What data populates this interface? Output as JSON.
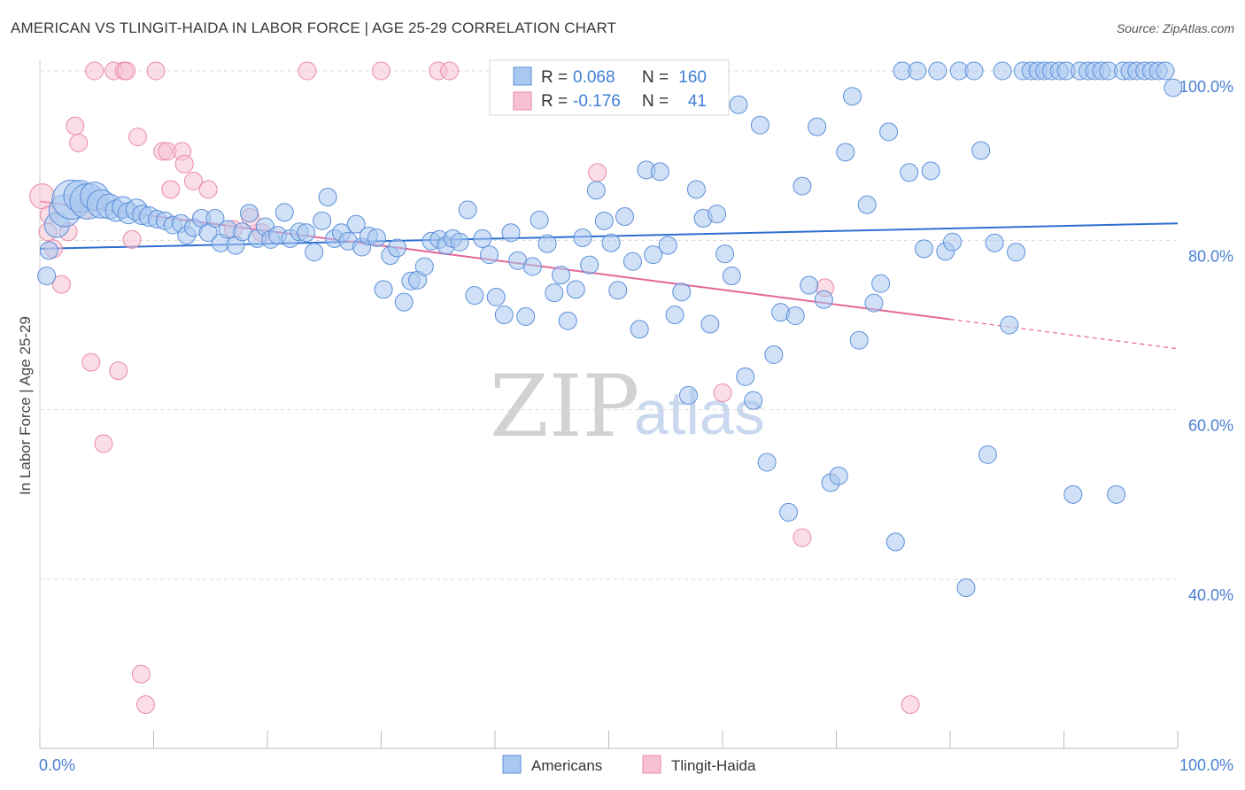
{
  "title": "AMERICAN VS TLINGIT-HAIDA IN LABOR FORCE | AGE 25-29 CORRELATION CHART",
  "source": "Source: ZipAtlas.com",
  "watermark": {
    "zip": "ZIP",
    "atlas": "atlas"
  },
  "colors": {
    "americans_fill": "#a9c8f0",
    "americans_stroke": "#5b8fd9",
    "americans_line": "#2f6fd1",
    "tlingit_fill": "#f7c1d1",
    "tlingit_stroke": "#e88aa8",
    "tlingit_line": "#e4679a",
    "grid": "#d8d8d8",
    "tick_label": "#4a7fd4"
  },
  "stats": {
    "r_label": "R =",
    "n_label": "N =",
    "americans": {
      "r": "0.068",
      "n": "160"
    },
    "tlingit": {
      "r": "-0.176",
      "n": "41"
    }
  },
  "chart_data": {
    "type": "scatter",
    "xlabel": "",
    "ylabel": "In Labor Force | Age 25-29",
    "xlim": [
      0,
      100
    ],
    "ylim": [
      20,
      102
    ],
    "x_tick_labels": [
      {
        "v": 0,
        "t": "0.0%"
      },
      {
        "v": 100,
        "t": "100.0%"
      }
    ],
    "y_tick_labels": [
      {
        "v": 100,
        "t": "100.0%"
      },
      {
        "v": 80,
        "t": "80.0%"
      },
      {
        "v": 60,
        "t": "60.0%"
      },
      {
        "v": 40,
        "t": "40.0%"
      }
    ],
    "y_gridlines": [
      100,
      80,
      60,
      40
    ],
    "legend_placement": "bottom-center",
    "series": [
      {
        "name": "Americans",
        "trend": {
          "x0": 0,
          "y0": 79.0,
          "x1": 100,
          "y1": 82.0,
          "solid_to": 100
        },
        "points": [
          [
            0.6,
            75.8,
            10
          ],
          [
            0.8,
            78.8,
            10
          ],
          [
            1.5,
            81.8,
            14
          ],
          [
            2.2,
            83.5,
            18
          ],
          [
            2.8,
            84.8,
            22
          ],
          [
            3.5,
            85.2,
            18
          ],
          [
            4.2,
            84.6,
            20
          ],
          [
            4.8,
            85.2,
            16
          ],
          [
            5.4,
            84.3,
            16
          ],
          [
            6.1,
            84.0,
            14
          ],
          [
            6.7,
            83.5,
            12
          ],
          [
            7.3,
            83.9,
            12
          ],
          [
            7.8,
            83.2,
            12
          ],
          [
            8.5,
            83.6,
            12
          ],
          [
            9.0,
            83.0,
            11
          ],
          [
            9.6,
            82.8,
            11
          ],
          [
            10.3,
            82.5,
            10
          ],
          [
            11.0,
            82.3,
            10
          ],
          [
            11.7,
            81.8,
            10
          ],
          [
            12.4,
            82.0,
            10
          ],
          [
            12.9,
            80.6,
            10
          ],
          [
            13.5,
            81.5,
            10
          ],
          [
            14.2,
            82.6,
            10
          ],
          [
            14.8,
            80.9,
            10
          ],
          [
            15.4,
            82.6,
            10
          ],
          [
            15.9,
            79.7,
            10
          ],
          [
            16.5,
            81.3,
            10
          ],
          [
            17.2,
            79.4,
            10
          ],
          [
            17.8,
            81.0,
            10
          ],
          [
            18.4,
            83.2,
            10
          ],
          [
            19.1,
            80.2,
            10
          ],
          [
            19.8,
            81.6,
            10
          ],
          [
            20.3,
            80.1,
            10
          ],
          [
            20.9,
            80.6,
            10
          ],
          [
            21.5,
            83.3,
            10
          ],
          [
            22.0,
            80.2,
            10
          ],
          [
            22.8,
            81.0,
            10
          ],
          [
            23.4,
            80.9,
            10
          ],
          [
            24.1,
            78.6,
            10
          ],
          [
            24.8,
            82.3,
            10
          ],
          [
            25.3,
            85.1,
            10
          ],
          [
            25.9,
            80.2,
            10
          ],
          [
            26.5,
            80.9,
            10
          ],
          [
            27.1,
            79.9,
            10
          ],
          [
            27.8,
            81.9,
            10
          ],
          [
            28.3,
            79.2,
            10
          ],
          [
            28.9,
            80.5,
            10
          ],
          [
            29.6,
            80.3,
            10
          ],
          [
            30.2,
            74.2,
            10
          ],
          [
            30.8,
            78.2,
            10
          ],
          [
            31.4,
            79.1,
            10
          ],
          [
            32.0,
            72.7,
            10
          ],
          [
            32.6,
            75.2,
            10
          ],
          [
            33.2,
            75.3,
            10
          ],
          [
            33.8,
            76.9,
            10
          ],
          [
            34.4,
            79.9,
            10
          ],
          [
            35.1,
            80.1,
            10
          ],
          [
            35.7,
            79.4,
            10
          ],
          [
            36.3,
            80.2,
            10
          ],
          [
            36.9,
            79.8,
            10
          ],
          [
            37.6,
            83.6,
            10
          ],
          [
            38.2,
            73.5,
            10
          ],
          [
            38.9,
            80.2,
            10
          ],
          [
            39.5,
            78.3,
            10
          ],
          [
            40.1,
            73.3,
            10
          ],
          [
            40.8,
            71.2,
            10
          ],
          [
            41.4,
            80.9,
            10
          ],
          [
            42.0,
            77.6,
            10
          ],
          [
            42.7,
            71.0,
            10
          ],
          [
            43.3,
            76.9,
            10
          ],
          [
            43.9,
            82.4,
            10
          ],
          [
            44.6,
            79.6,
            10
          ],
          [
            45.2,
            73.8,
            10
          ],
          [
            45.8,
            75.9,
            10
          ],
          [
            46.4,
            70.5,
            10
          ],
          [
            47.1,
            74.2,
            10
          ],
          [
            47.7,
            80.3,
            10
          ],
          [
            48.3,
            77.1,
            10
          ],
          [
            48.9,
            85.9,
            10
          ],
          [
            49.6,
            82.3,
            10
          ],
          [
            50.2,
            79.7,
            10
          ],
          [
            50.8,
            74.1,
            10
          ],
          [
            51.4,
            82.8,
            10
          ],
          [
            52.1,
            77.5,
            10
          ],
          [
            52.7,
            69.5,
            10
          ],
          [
            53.3,
            88.3,
            10
          ],
          [
            53.9,
            78.3,
            10
          ],
          [
            54.5,
            88.1,
            10
          ],
          [
            55.2,
            79.4,
            10
          ],
          [
            55.8,
            71.2,
            10
          ],
          [
            56.4,
            73.9,
            10
          ],
          [
            57.0,
            61.7,
            10
          ],
          [
            57.7,
            86.0,
            10
          ],
          [
            58.3,
            82.6,
            10
          ],
          [
            58.9,
            70.1,
            10
          ],
          [
            59.5,
            83.1,
            10
          ],
          [
            60.2,
            78.4,
            10
          ],
          [
            60.8,
            75.8,
            10
          ],
          [
            61.4,
            96.0,
            10
          ],
          [
            62.0,
            63.9,
            10
          ],
          [
            62.7,
            61.1,
            10
          ],
          [
            63.3,
            93.6,
            10
          ],
          [
            63.9,
            53.8,
            10
          ],
          [
            64.5,
            66.5,
            10
          ],
          [
            65.1,
            71.5,
            10
          ],
          [
            65.8,
            47.9,
            10
          ],
          [
            66.4,
            71.1,
            10
          ],
          [
            67.0,
            86.4,
            10
          ],
          [
            67.6,
            74.7,
            10
          ],
          [
            68.3,
            93.4,
            10
          ],
          [
            68.9,
            73.0,
            10
          ],
          [
            69.5,
            51.4,
            10
          ],
          [
            70.2,
            52.2,
            10
          ],
          [
            70.8,
            90.4,
            10
          ],
          [
            71.4,
            97.0,
            10
          ],
          [
            72.0,
            68.2,
            10
          ],
          [
            72.7,
            84.2,
            10
          ],
          [
            73.3,
            72.6,
            10
          ],
          [
            73.9,
            74.9,
            10
          ],
          [
            74.6,
            92.8,
            10
          ],
          [
            75.2,
            44.4,
            10
          ],
          [
            75.8,
            100.0,
            10
          ],
          [
            76.4,
            88.0,
            10
          ],
          [
            77.1,
            100.0,
            10
          ],
          [
            77.7,
            79.0,
            10
          ],
          [
            78.3,
            88.2,
            10
          ],
          [
            78.9,
            100.0,
            10
          ],
          [
            79.6,
            78.7,
            10
          ],
          [
            80.2,
            79.8,
            10
          ],
          [
            80.8,
            100.0,
            10
          ],
          [
            81.4,
            39.0,
            10
          ],
          [
            82.1,
            100.0,
            10
          ],
          [
            82.7,
            90.6,
            10
          ],
          [
            83.3,
            54.7,
            10
          ],
          [
            83.9,
            79.7,
            10
          ],
          [
            84.6,
            100.0,
            10
          ],
          [
            85.2,
            70.0,
            10
          ],
          [
            85.8,
            78.6,
            10
          ],
          [
            86.4,
            100.0,
            10
          ],
          [
            87.1,
            100.0,
            10
          ],
          [
            87.7,
            100.0,
            10
          ],
          [
            88.3,
            100.0,
            10
          ],
          [
            88.9,
            100.0,
            10
          ],
          [
            89.6,
            100.0,
            10
          ],
          [
            90.2,
            100.0,
            10
          ],
          [
            90.8,
            50.0,
            10
          ],
          [
            91.4,
            100.0,
            10
          ],
          [
            92.1,
            100.0,
            10
          ],
          [
            92.7,
            100.0,
            10
          ],
          [
            93.3,
            100.0,
            10
          ],
          [
            93.9,
            100.0,
            10
          ],
          [
            94.6,
            50.0,
            10
          ],
          [
            95.2,
            100.0,
            10
          ],
          [
            95.8,
            100.0,
            10
          ],
          [
            96.4,
            100.0,
            10
          ],
          [
            97.1,
            100.0,
            10
          ],
          [
            97.7,
            100.0,
            10
          ],
          [
            98.3,
            100.0,
            10
          ],
          [
            98.9,
            100.0,
            10
          ],
          [
            99.6,
            98.0,
            10
          ]
        ]
      },
      {
        "name": "Tlingit-Haida",
        "trend": {
          "x0": 0,
          "y0": 84.6,
          "x1": 100,
          "y1": 67.2,
          "solid_to": 80
        },
        "points": [
          [
            0.2,
            85.2,
            14
          ],
          [
            0.7,
            81.0,
            10
          ],
          [
            0.8,
            83.0,
            10
          ],
          [
            1.2,
            79.0,
            10
          ],
          [
            1.9,
            74.8,
            10
          ],
          [
            2.5,
            81.0,
            10
          ],
          [
            3.1,
            93.5,
            10
          ],
          [
            3.4,
            91.5,
            10
          ],
          [
            4.0,
            83.6,
            10
          ],
          [
            4.5,
            65.6,
            10
          ],
          [
            4.8,
            100.0,
            10
          ],
          [
            5.6,
            56.0,
            10
          ],
          [
            6.5,
            100.0,
            10
          ],
          [
            6.9,
            64.6,
            10
          ],
          [
            7.4,
            100.0,
            10
          ],
          [
            7.6,
            100.0,
            10
          ],
          [
            8.1,
            80.1,
            10
          ],
          [
            8.6,
            92.2,
            10
          ],
          [
            8.9,
            28.8,
            10
          ],
          [
            9.3,
            25.2,
            10
          ],
          [
            10.2,
            100.0,
            10
          ],
          [
            10.8,
            90.5,
            10
          ],
          [
            11.2,
            90.5,
            10
          ],
          [
            11.5,
            86.0,
            10
          ],
          [
            12.5,
            90.5,
            10
          ],
          [
            12.7,
            89.0,
            10
          ],
          [
            13.5,
            87.0,
            10
          ],
          [
            14.8,
            86.0,
            10
          ],
          [
            17.0,
            81.3,
            10
          ],
          [
            18.5,
            82.7,
            10
          ],
          [
            19.5,
            80.9,
            10
          ],
          [
            23.5,
            100.0,
            10
          ],
          [
            30.0,
            100.0,
            10
          ],
          [
            35.0,
            100.0,
            10
          ],
          [
            36.0,
            100.0,
            10
          ],
          [
            49.0,
            88.0,
            10
          ],
          [
            56.5,
            96.2,
            10
          ],
          [
            60.0,
            62.0,
            10
          ],
          [
            67.0,
            44.9,
            10
          ],
          [
            69.0,
            74.4,
            10
          ],
          [
            76.5,
            25.2,
            10
          ]
        ]
      }
    ]
  }
}
